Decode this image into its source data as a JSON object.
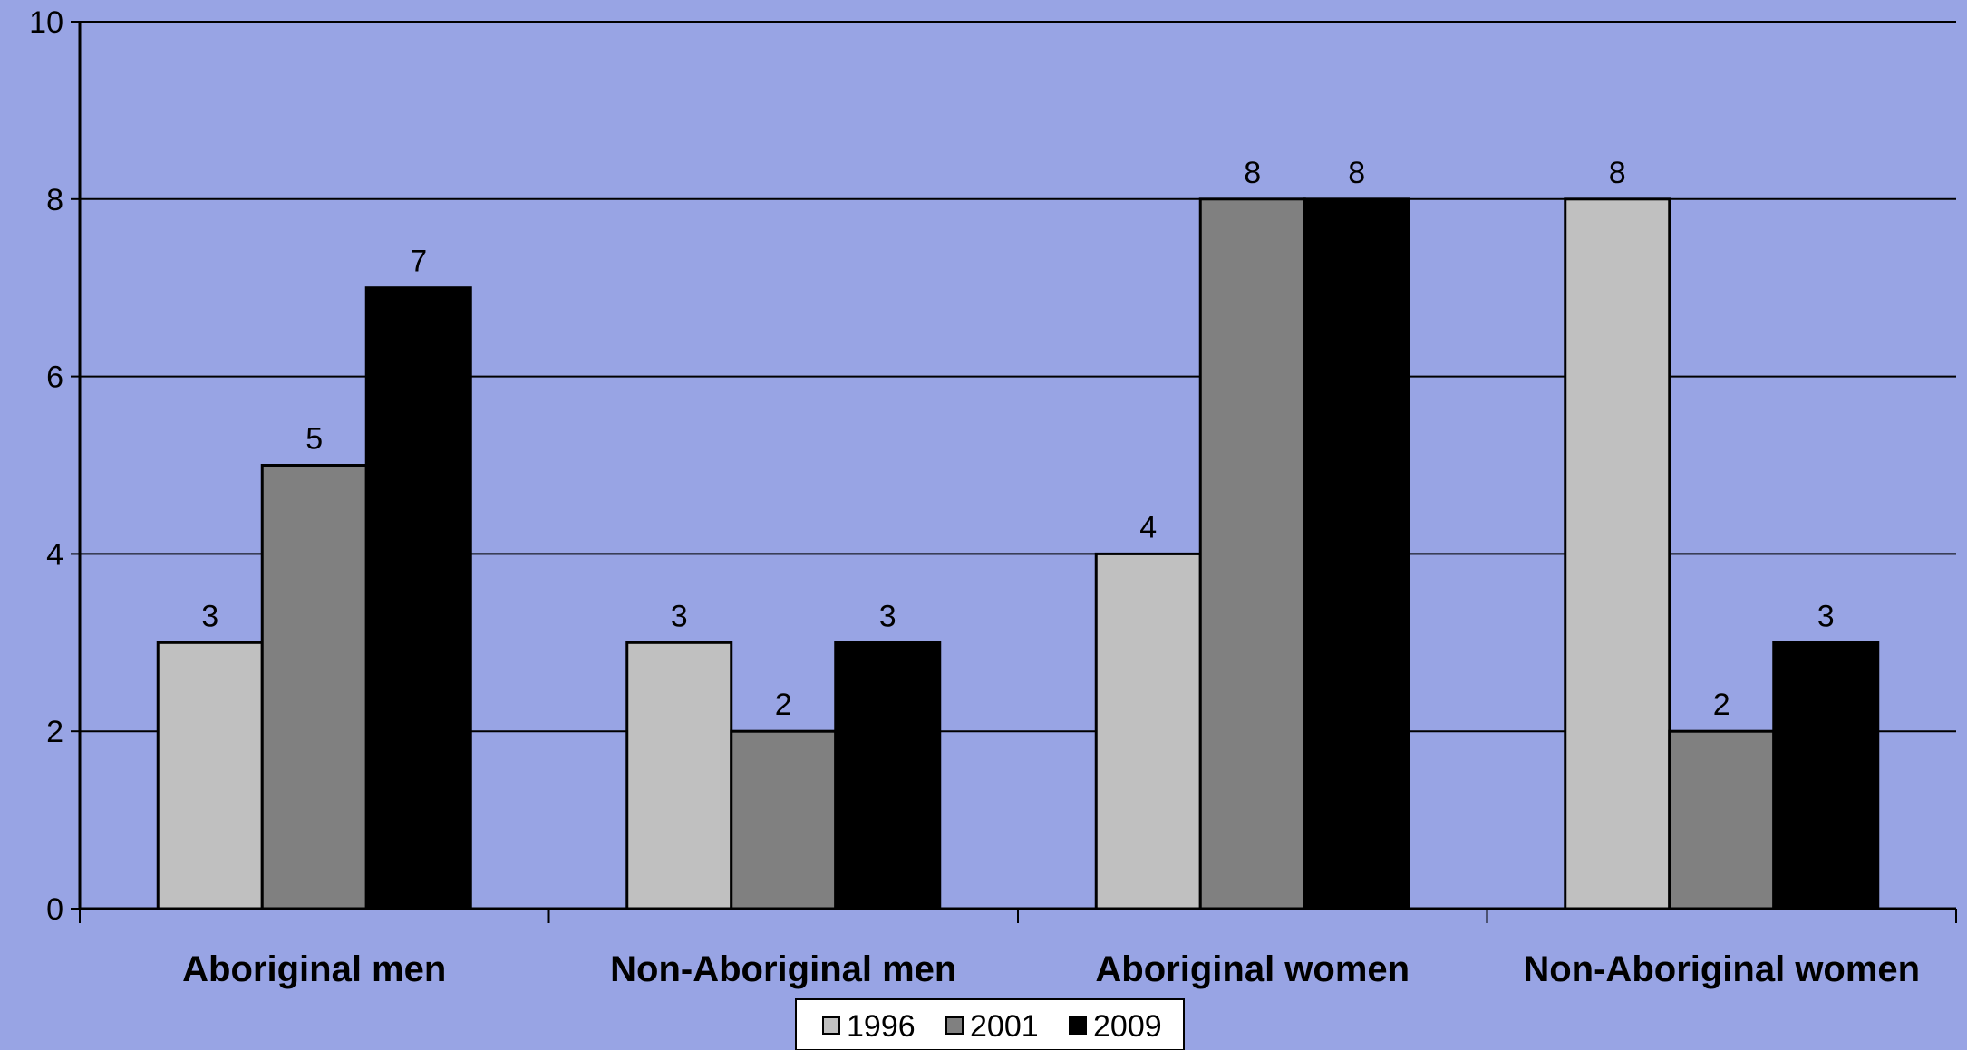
{
  "chart_data": {
    "type": "bar",
    "categories": [
      "Aboriginal men",
      "Non-Aboriginal men",
      "Aboriginal women",
      "Non-Aboriginal women"
    ],
    "series": [
      {
        "name": "1996",
        "values": [
          3,
          3,
          4,
          8
        ],
        "color": "#c0c0c0"
      },
      {
        "name": "2001",
        "values": [
          5,
          2,
          8,
          2
        ],
        "color": "#808080"
      },
      {
        "name": "2009",
        "values": [
          7,
          3,
          8,
          3
        ],
        "color": "#000000"
      }
    ],
    "data_labels": [
      [
        "3",
        "5",
        "7"
      ],
      [
        "3",
        "2",
        "3"
      ],
      [
        "4",
        "8",
        "8"
      ],
      [
        "8",
        "2",
        "3"
      ]
    ],
    "ylim": [
      0,
      10
    ],
    "yticks": [
      "0",
      "2",
      "4",
      "6",
      "8",
      "10"
    ],
    "grid": true,
    "legend_position": "bottom-center",
    "title": "",
    "xlabel": "",
    "ylabel": ""
  },
  "colors": {
    "plot_background": "#98a4e4",
    "gridline": "#000000"
  }
}
